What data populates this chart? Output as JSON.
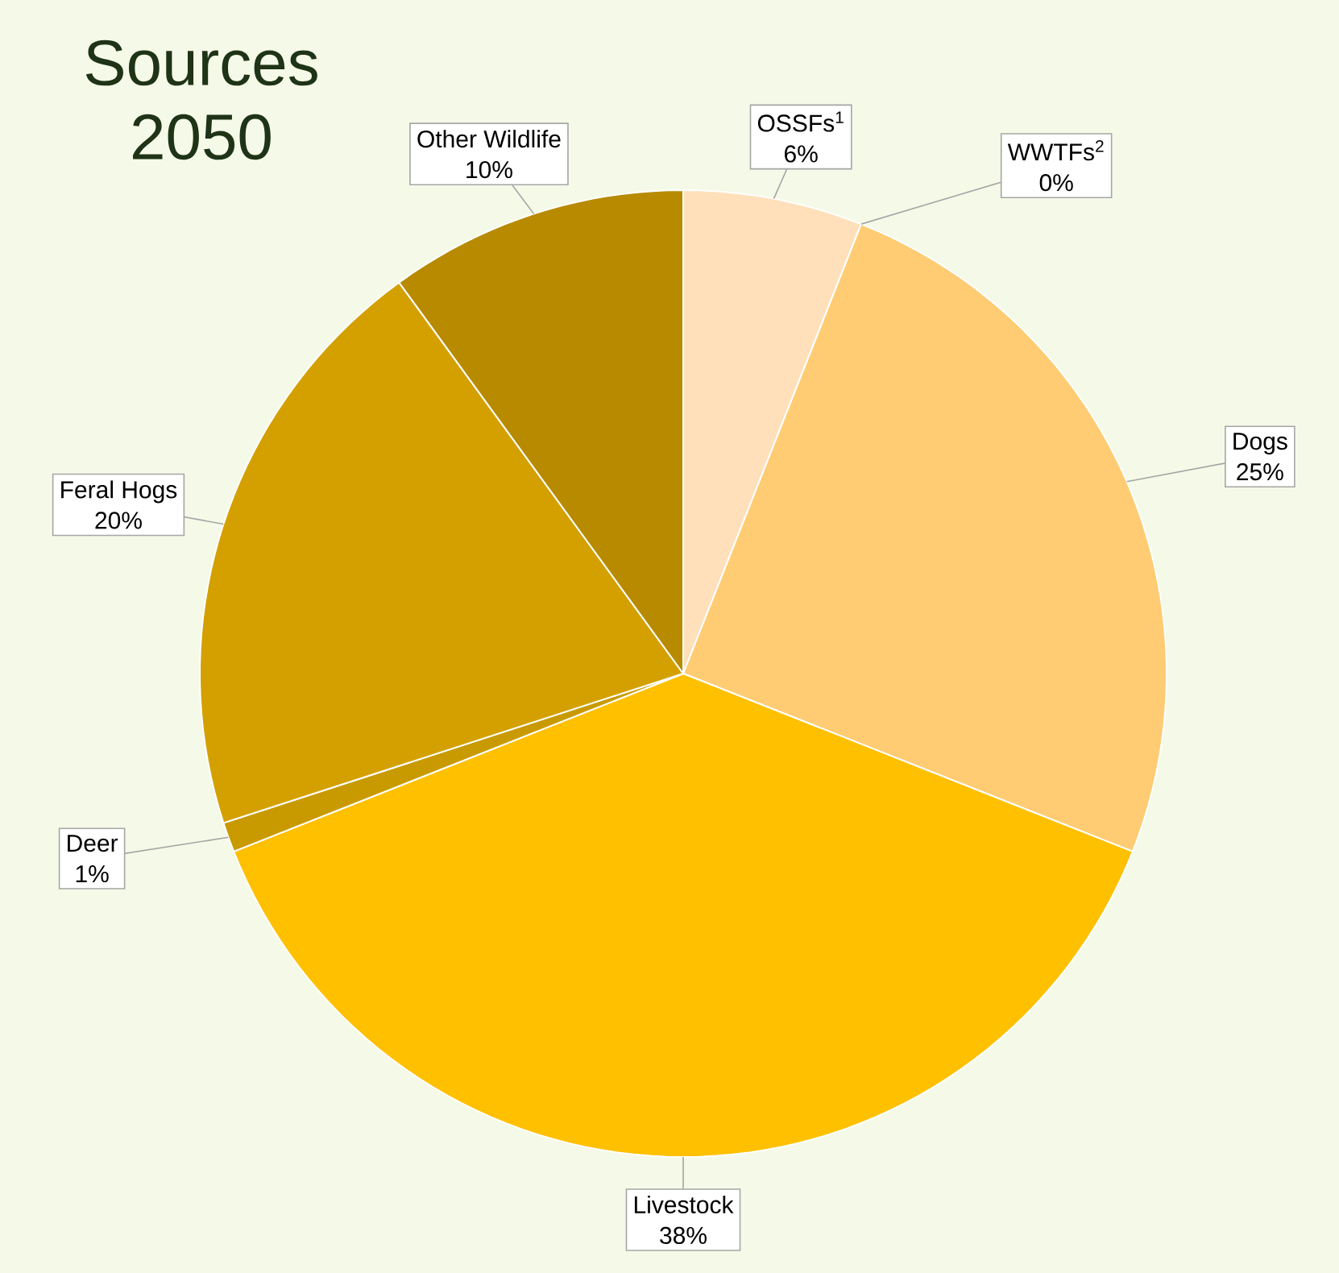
{
  "chart_data": {
    "type": "pie",
    "title": "Sources 2050",
    "categories": [
      "OSSFs$^{1}$",
      "WWTFs$^{2}$",
      "Dogs",
      "Livestock",
      "Deer",
      "Feral Hogs",
      "Other Wildlife"
    ],
    "values": [
      6,
      0,
      25,
      38,
      1,
      20,
      10
    ],
    "value_labels": [
      "6%",
      "0%",
      "25%",
      "38%",
      "1%",
      "20%",
      "10%"
    ],
    "colors": [
      "#ffe0bb",
      "#ffd590",
      "#ffcc73",
      "#ffc000",
      "#c99a00",
      "#d4a000",
      "#b88a00"
    ]
  }
}
